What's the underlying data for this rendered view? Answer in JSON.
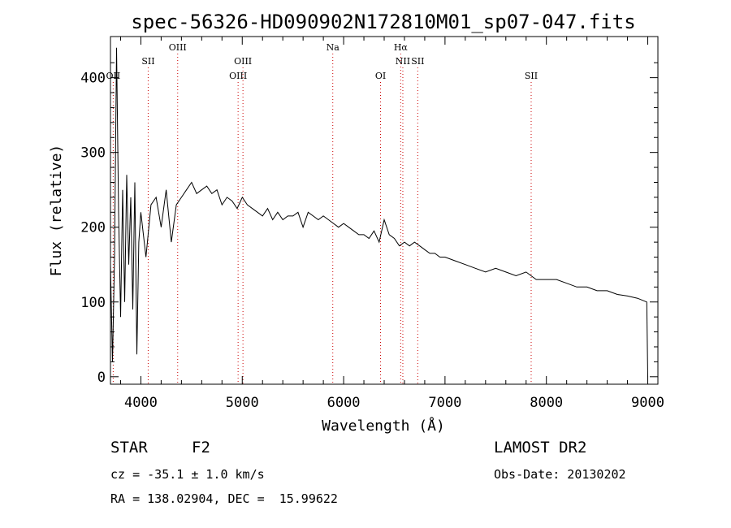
{
  "chart_data": {
    "type": "line",
    "title": "spec-56326-HD090902N172810M01_sp07-047.fits",
    "xlabel": "Wavelength (Å)",
    "ylabel": "Flux (relative)",
    "xlim": [
      3700,
      9100
    ],
    "ylim": [
      -10,
      455
    ],
    "xticks": [
      4000,
      5000,
      6000,
      7000,
      8000,
      9000
    ],
    "yticks": [
      0,
      100,
      200,
      300,
      400
    ],
    "grid": false,
    "line_color": "#000000",
    "marker_color": "#cc0000",
    "series": [
      {
        "x": [
          3700,
          3720,
          3740,
          3760,
          3780,
          3800,
          3820,
          3840,
          3860,
          3880,
          3900,
          3920,
          3940,
          3960,
          3980,
          4000,
          4050,
          4100,
          4150,
          4200,
          4250,
          4300,
          4350,
          4400,
          4450,
          4500,
          4550,
          4600,
          4650,
          4700,
          4750,
          4800,
          4850,
          4900,
          4950,
          5000,
          5050,
          5100,
          5150,
          5200,
          5250,
          5300,
          5350,
          5400,
          5450,
          5500,
          5550,
          5600,
          5650,
          5700,
          5750,
          5800,
          5850,
          5900,
          5950,
          6000,
          6050,
          6100,
          6150,
          6200,
          6250,
          6300,
          6350,
          6400,
          6450,
          6500,
          6550,
          6600,
          6650,
          6700,
          6750,
          6800,
          6850,
          6900,
          6950,
          7000,
          7100,
          7200,
          7300,
          7400,
          7500,
          7600,
          7700,
          7800,
          7900,
          8000,
          8100,
          8200,
          8300,
          8400,
          8500,
          8600,
          8700,
          8800,
          8900,
          8990,
          9000
        ],
        "y": [
          150,
          20,
          160,
          440,
          220,
          80,
          250,
          100,
          270,
          150,
          240,
          90,
          260,
          30,
          180,
          220,
          160,
          230,
          240,
          200,
          250,
          180,
          230,
          240,
          250,
          260,
          245,
          250,
          255,
          245,
          250,
          230,
          240,
          235,
          225,
          240,
          230,
          225,
          220,
          215,
          225,
          210,
          220,
          210,
          215,
          215,
          220,
          200,
          220,
          215,
          210,
          215,
          210,
          205,
          200,
          205,
          200,
          195,
          190,
          190,
          185,
          195,
          180,
          210,
          190,
          185,
          175,
          180,
          175,
          180,
          175,
          170,
          165,
          165,
          160,
          160,
          155,
          150,
          145,
          140,
          145,
          140,
          135,
          140,
          130,
          130,
          130,
          125,
          120,
          120,
          115,
          115,
          110,
          108,
          105,
          100,
          0
        ]
      }
    ],
    "line_markers": [
      {
        "label": "OII",
        "x": 3727,
        "row": 3
      },
      {
        "label": "SII",
        "x": 4072,
        "row": 2
      },
      {
        "label": "OIII",
        "x": 4363,
        "row": 1
      },
      {
        "label": "OIII",
        "x": 4959,
        "row": 3
      },
      {
        "label": "OIII",
        "x": 5007,
        "row": 2
      },
      {
        "label": "Na",
        "x": 5893,
        "row": 1
      },
      {
        "label": "OI",
        "x": 6364,
        "row": 3
      },
      {
        "label": "Hα",
        "x": 6563,
        "row": 1
      },
      {
        "label": "NII",
        "x": 6584,
        "row": 2
      },
      {
        "label": "SII",
        "x": 6731,
        "row": 2
      },
      {
        "label": "SII",
        "x": 7850,
        "row": 3
      }
    ]
  },
  "info": {
    "object_class": "STAR",
    "subclass": "F2",
    "survey": "LAMOST DR2",
    "redshift": "cz = -35.1 ± 1.0 km/s",
    "obs_date": "Obs-Date: 20130202",
    "coords": "RA = 138.02904, DEC =  15.99622"
  }
}
